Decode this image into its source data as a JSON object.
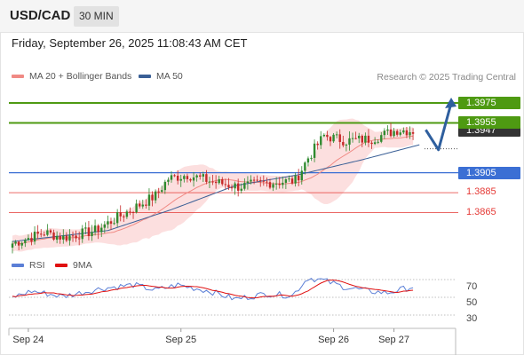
{
  "header": {
    "symbol": "USD/CAD",
    "timeframe": "30 MIN"
  },
  "datetime": "Friday, September 26, 2025 11:08:43 AM CET",
  "legend": {
    "ma20_bb": {
      "label": "MA 20 + Bollinger Bands",
      "color": "#f08a84"
    },
    "ma50": {
      "label": "MA 50",
      "color": "#3a5f96"
    }
  },
  "credit": "Research © 2025 Trading Central",
  "colors": {
    "resistance": "#4e9a12",
    "pivot": "#3b6fd4",
    "support": "#e53935",
    "current": "#333333",
    "candle_up": "#2f8a2f",
    "candle_down": "#c62828",
    "bollinger_fill": "#fbd4d4",
    "arrow": "#2f5f9e",
    "rsi_line": "#5b7fd6",
    "rsi_ma": "#e01010"
  },
  "levels": [
    {
      "name": "resistance-2",
      "value": 1.3975,
      "label": "1.3975",
      "type": "resistance"
    },
    {
      "name": "resistance-1",
      "value": 1.3955,
      "label": "1.3955",
      "type": "resistance"
    },
    {
      "name": "pivot",
      "value": 1.3905,
      "label": "1.3905",
      "type": "pivot"
    },
    {
      "name": "support-1",
      "value": 1.3885,
      "label": "1.3885",
      "type": "support"
    },
    {
      "name": "support-2",
      "value": 1.3865,
      "label": "1.3865",
      "type": "support"
    }
  ],
  "current_price": "1.3947",
  "rsi": {
    "legend": {
      "rsi": "RSI",
      "ma": "9MA"
    },
    "ticks": [
      {
        "value": 70,
        "label": "70"
      },
      {
        "value": 50,
        "label": "50"
      },
      {
        "value": 30,
        "label": "30"
      }
    ]
  },
  "chart_data": {
    "type": "candlestick",
    "ylim": [
      1.3829,
      1.3991
    ],
    "x_labels": [
      {
        "label": "Sep 24",
        "index": 5
      },
      {
        "label": "Sep 25",
        "index": 53
      },
      {
        "label": "Sep 26",
        "index": 101
      },
      {
        "label": "Sep 27",
        "index": 120
      }
    ],
    "anchors": [
      {
        "index": 0,
        "value": 1.3834
      },
      {
        "index": 10,
        "value": 1.3845
      },
      {
        "index": 16,
        "value": 1.384
      },
      {
        "index": 26,
        "value": 1.3847
      },
      {
        "index": 33,
        "value": 1.386
      },
      {
        "index": 45,
        "value": 1.3882
      },
      {
        "index": 49,
        "value": 1.3899
      },
      {
        "index": 55,
        "value": 1.3903
      },
      {
        "index": 63,
        "value": 1.3896
      },
      {
        "index": 71,
        "value": 1.3891
      },
      {
        "index": 80,
        "value": 1.3895
      },
      {
        "index": 89,
        "value": 1.3897
      },
      {
        "index": 93,
        "value": 1.392
      },
      {
        "index": 98,
        "value": 1.3942
      },
      {
        "index": 105,
        "value": 1.3937
      },
      {
        "index": 113,
        "value": 1.3939
      },
      {
        "index": 121,
        "value": 1.3948
      },
      {
        "index": 126,
        "value": 1.3947
      }
    ],
    "ma50_anchors": [
      {
        "index": 0,
        "value": 1.3836
      },
      {
        "index": 30,
        "value": 1.3847
      },
      {
        "index": 50,
        "value": 1.3868
      },
      {
        "index": 70,
        "value": 1.3892
      },
      {
        "index": 90,
        "value": 1.3903
      },
      {
        "index": 110,
        "value": 1.3918
      },
      {
        "index": 128,
        "value": 1.3933
      }
    ],
    "forecast": [
      {
        "point": "start",
        "index": 130,
        "value": 1.3948
      },
      {
        "point": "dip",
        "index": 134,
        "value": 1.3928
      },
      {
        "point": "target",
        "index": 138,
        "value": 1.3975
      }
    ],
    "rsi_anchors": [
      {
        "index": 0,
        "value": 50
      },
      {
        "index": 6,
        "value": 57
      },
      {
        "index": 16,
        "value": 51
      },
      {
        "index": 28,
        "value": 60
      },
      {
        "index": 38,
        "value": 64
      },
      {
        "index": 45,
        "value": 58
      },
      {
        "index": 52,
        "value": 64
      },
      {
        "index": 62,
        "value": 57
      },
      {
        "index": 70,
        "value": 48
      },
      {
        "index": 80,
        "value": 54
      },
      {
        "index": 88,
        "value": 52
      },
      {
        "index": 93,
        "value": 72
      },
      {
        "index": 98,
        "value": 69
      },
      {
        "index": 104,
        "value": 62
      },
      {
        "index": 112,
        "value": 57
      },
      {
        "index": 118,
        "value": 55
      },
      {
        "index": 126,
        "value": 62
      }
    ]
  }
}
